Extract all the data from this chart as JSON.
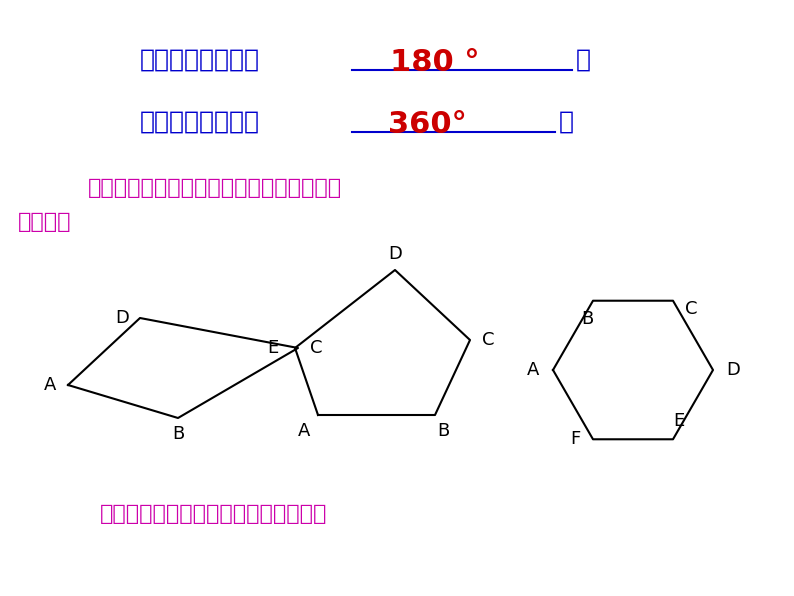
{
  "bg_color": "#ffffff",
  "line1_text": "三角形的内角和是",
  "line1_answer": "180 °",
  "line1_suffix": "，",
  "line2_text": "三角形的外角和是",
  "line2_answer": "360°",
  "line2_suffix": "。",
  "question1": "对于多边形，内角和与外角和，你能自己求",
  "question2": "出来吗？",
  "question3": "你能用三角形知识来解决这个问题吗？",
  "text_color_blue": "#0000CD",
  "text_color_red": "#CC0000",
  "text_color_magenta": "#CC00AA",
  "fig_width": 7.94,
  "fig_height": 5.96,
  "dpi": 100
}
